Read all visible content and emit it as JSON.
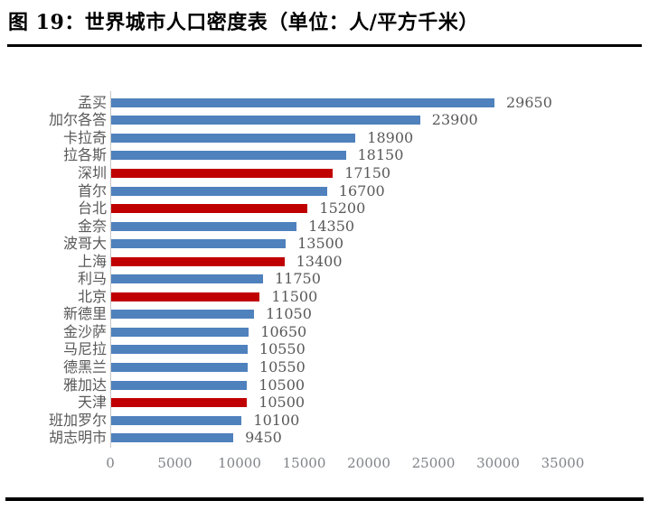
{
  "title": "图 19：世界城市人口密度表（单位：人/平方千米）",
  "chart_data": {
    "type": "bar",
    "orientation": "horizontal",
    "title": "图 19：世界城市人口密度表（单位：人/平方千米）",
    "unit_label": "人/平方千米",
    "categories": [
      "孟买",
      "加尔各答",
      "卡拉奇",
      "拉各斯",
      "深圳",
      "首尔",
      "台北",
      "金奈",
      "波哥大",
      "上海",
      "利马",
      "北京",
      "新德里",
      "金沙萨",
      "马尼拉",
      "德黑兰",
      "雅加达",
      "天津",
      "班加罗尔",
      "胡志明市"
    ],
    "values": [
      29650,
      23900,
      18900,
      18150,
      17150,
      16700,
      15200,
      14350,
      13500,
      13400,
      11750,
      11500,
      11050,
      10650,
      10550,
      10550,
      10500,
      10500,
      10100,
      9450
    ],
    "highlight": [
      false,
      false,
      false,
      false,
      true,
      false,
      true,
      false,
      false,
      true,
      false,
      true,
      false,
      false,
      false,
      false,
      false,
      true,
      false,
      false
    ],
    "highlighted_categories": [
      "深圳",
      "台北",
      "上海",
      "北京",
      "天津"
    ],
    "value_labels": true,
    "xlim": [
      0,
      35000
    ],
    "x_ticks": [
      0,
      5000,
      10000,
      15000,
      20000,
      25000,
      30000,
      35000
    ],
    "grid": false,
    "legend": "none",
    "colors": {
      "bar_default": "#4f81bd",
      "bar_highlight": "#c00000",
      "label_text": "#595959",
      "tick_text": "#7f8287",
      "axis_line": "#c6c6c6",
      "title_text": "#000000",
      "rule": "#000000"
    }
  }
}
